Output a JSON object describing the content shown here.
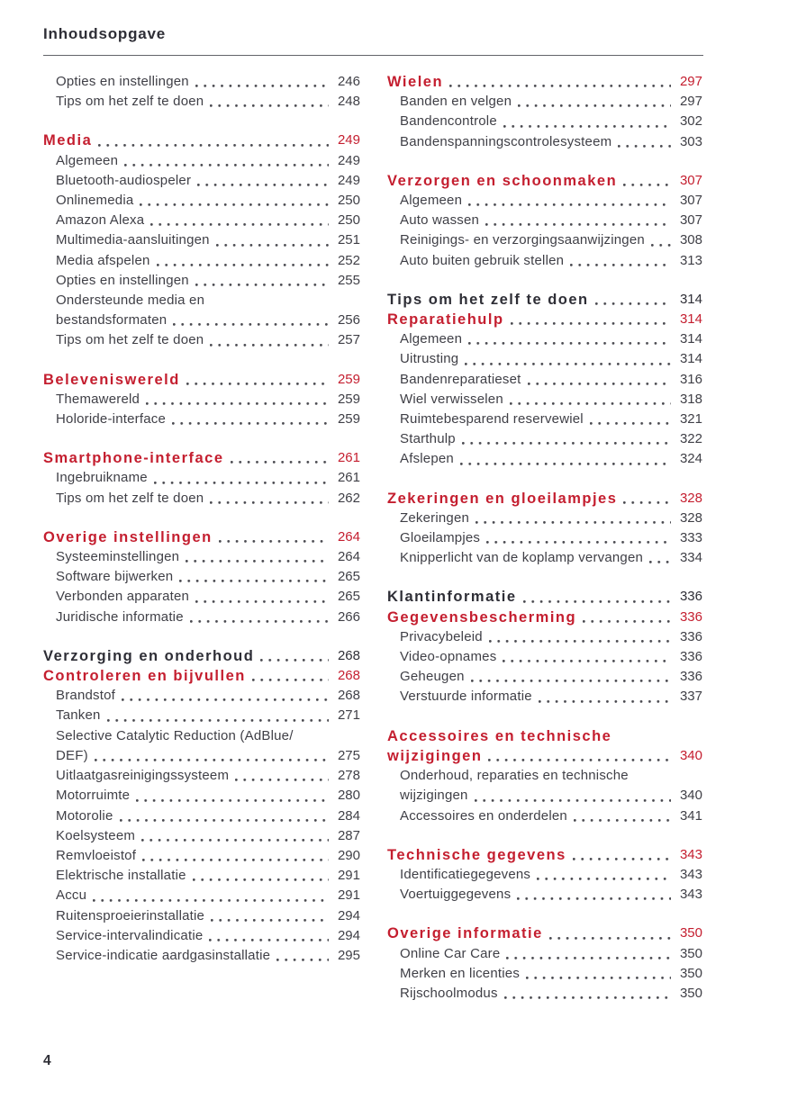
{
  "page": {
    "title": "Inhoudsopgave",
    "page_number": "4"
  },
  "colors": {
    "accent_red": "#c41e2f",
    "heading_black": "#2e2e36",
    "body_text": "#3f3f46"
  },
  "columns": [
    {
      "sections": [
        {
          "entries": [
            {
              "style": "item",
              "label": "Opties en instellingen",
              "page": "246"
            },
            {
              "style": "item",
              "label": "Tips om het zelf te doen",
              "page": "248"
            }
          ]
        },
        {
          "entries": [
            {
              "style": "chapter",
              "label": "Media",
              "page": "249"
            },
            {
              "style": "item",
              "label": "Algemeen",
              "page": "249"
            },
            {
              "style": "item",
              "label": "Bluetooth-audiospeler",
              "page": "249"
            },
            {
              "style": "item",
              "label": "Onlinemedia",
              "page": "250"
            },
            {
              "style": "item",
              "label": "Amazon Alexa",
              "page": "250"
            },
            {
              "style": "item",
              "label": "Multimedia-aansluitingen",
              "page": "251"
            },
            {
              "style": "item",
              "label": "Media afspelen",
              "page": "252"
            },
            {
              "style": "item",
              "label": "Opties en instellingen",
              "page": "255"
            },
            {
              "style": "item",
              "label_lines": [
                "Ondersteunde media en",
                "bestandsformaten"
              ],
              "page": "256"
            },
            {
              "style": "item",
              "label": "Tips om het zelf te doen",
              "page": "257"
            }
          ]
        },
        {
          "entries": [
            {
              "style": "chapter",
              "label": "Beleveniswereld",
              "page": "259"
            },
            {
              "style": "item",
              "label": "Themawereld",
              "page": "259"
            },
            {
              "style": "item",
              "label": "Holoride-interface",
              "page": "259"
            }
          ]
        },
        {
          "entries": [
            {
              "style": "chapter",
              "label": "Smartphone-interface",
              "page": "261"
            },
            {
              "style": "item",
              "label": "Ingebruikname",
              "page": "261"
            },
            {
              "style": "item",
              "label": "Tips om het zelf te doen",
              "page": "262"
            }
          ]
        },
        {
          "entries": [
            {
              "style": "chapter",
              "label": "Overige instellingen",
              "page": "264"
            },
            {
              "style": "item",
              "label": "Systeeminstellingen",
              "page": "264"
            },
            {
              "style": "item",
              "label": "Software bijwerken",
              "page": "265"
            },
            {
              "style": "item",
              "label": "Verbonden apparaten",
              "page": "265"
            },
            {
              "style": "item",
              "label": "Juridische informatie",
              "page": "266"
            }
          ]
        },
        {
          "entries": [
            {
              "style": "part",
              "label": "Verzorging en onderhoud",
              "page": "268"
            },
            {
              "style": "chapter",
              "label": "Controleren en bijvullen",
              "page": "268"
            },
            {
              "style": "item",
              "label": "Brandstof",
              "page": "268"
            },
            {
              "style": "item",
              "label": "Tanken",
              "page": "271"
            },
            {
              "style": "item",
              "label_lines": [
                "Selective Catalytic Reduction (AdBlue/",
                "DEF)"
              ],
              "page": "275"
            },
            {
              "style": "item",
              "label": "Uitlaatgasreinigingssysteem",
              "page": "278"
            },
            {
              "style": "item",
              "label": "Motorruimte",
              "page": "280"
            },
            {
              "style": "item",
              "label": "Motorolie",
              "page": "284"
            },
            {
              "style": "item",
              "label": "Koelsysteem",
              "page": "287"
            },
            {
              "style": "item",
              "label": "Remvloeistof",
              "page": "290"
            },
            {
              "style": "item",
              "label": "Elektrische installatie",
              "page": "291"
            },
            {
              "style": "item",
              "label": "Accu",
              "page": "291"
            },
            {
              "style": "item",
              "label": "Ruitensproeierinstallatie",
              "page": "294"
            },
            {
              "style": "item",
              "label": "Service-intervalindicatie",
              "page": "294"
            },
            {
              "style": "item",
              "label": "Service-indicatie aardgasinstallatie",
              "page": "295"
            }
          ]
        }
      ]
    },
    {
      "sections": [
        {
          "entries": [
            {
              "style": "chapter",
              "label": "Wielen",
              "page": "297"
            },
            {
              "style": "item",
              "label": "Banden en velgen",
              "page": "297"
            },
            {
              "style": "item",
              "label": "Bandencontrole",
              "page": "302"
            },
            {
              "style": "item",
              "label": "Bandenspanningscontrolesysteem",
              "page": "303"
            }
          ]
        },
        {
          "entries": [
            {
              "style": "chapter",
              "label": "Verzorgen en schoonmaken",
              "page": "307"
            },
            {
              "style": "item",
              "label": "Algemeen",
              "page": "307"
            },
            {
              "style": "item",
              "label": "Auto wassen",
              "page": "307"
            },
            {
              "style": "item",
              "label": "Reinigings- en verzorgingsaanwijzingen",
              "page": "308"
            },
            {
              "style": "item",
              "label": "Auto buiten gebruik stellen",
              "page": "313"
            }
          ]
        },
        {
          "entries": [
            {
              "style": "part",
              "label": "Tips om het zelf te doen",
              "page": "314"
            },
            {
              "style": "chapter",
              "label": "Reparatiehulp",
              "page": "314"
            },
            {
              "style": "item",
              "label": "Algemeen",
              "page": "314"
            },
            {
              "style": "item",
              "label": "Uitrusting",
              "page": "314"
            },
            {
              "style": "item",
              "label": "Bandenreparatieset",
              "page": "316"
            },
            {
              "style": "item",
              "label": "Wiel verwisselen",
              "page": "318"
            },
            {
              "style": "item",
              "label": "Ruimtebesparend reservewiel",
              "page": "321"
            },
            {
              "style": "item",
              "label": "Starthulp",
              "page": "322"
            },
            {
              "style": "item",
              "label": "Afslepen",
              "page": "324"
            }
          ]
        },
        {
          "entries": [
            {
              "style": "chapter",
              "label": "Zekeringen en gloeilampjes",
              "page": "328"
            },
            {
              "style": "item",
              "label": "Zekeringen",
              "page": "328"
            },
            {
              "style": "item",
              "label": "Gloeilampjes",
              "page": "333"
            },
            {
              "style": "item",
              "label": "Knipperlicht van de koplamp vervangen",
              "page": "334"
            }
          ]
        },
        {
          "entries": [
            {
              "style": "part",
              "label": "Klantinformatie",
              "page": "336"
            },
            {
              "style": "chapter",
              "label": "Gegevensbescherming",
              "page": "336"
            },
            {
              "style": "item",
              "label": "Privacybeleid",
              "page": "336"
            },
            {
              "style": "item",
              "label": "Video-opnames",
              "page": "336"
            },
            {
              "style": "item",
              "label": "Geheugen",
              "page": "336"
            },
            {
              "style": "item",
              "label": "Verstuurde informatie",
              "page": "337"
            }
          ]
        },
        {
          "entries": [
            {
              "style": "chapter",
              "label_lines": [
                "Accessoires en technische",
                "wijzigingen"
              ],
              "page": "340"
            },
            {
              "style": "item",
              "label_lines": [
                "Onderhoud, reparaties en technische",
                "wijzigingen"
              ],
              "page": "340"
            },
            {
              "style": "item",
              "label": "Accessoires en onderdelen",
              "page": "341"
            }
          ]
        },
        {
          "entries": [
            {
              "style": "chapter",
              "label": "Technische gegevens",
              "page": "343"
            },
            {
              "style": "item",
              "label": "Identificatiegegevens",
              "page": "343"
            },
            {
              "style": "item",
              "label": "Voertuiggegevens",
              "page": "343"
            }
          ]
        },
        {
          "entries": [
            {
              "style": "chapter",
              "label": "Overige informatie",
              "page": "350"
            },
            {
              "style": "item",
              "label": "Online Car Care",
              "page": "350"
            },
            {
              "style": "item",
              "label": "Merken en licenties",
              "page": "350"
            },
            {
              "style": "item",
              "label": "Rijschoolmodus",
              "page": "350"
            }
          ]
        }
      ]
    }
  ]
}
